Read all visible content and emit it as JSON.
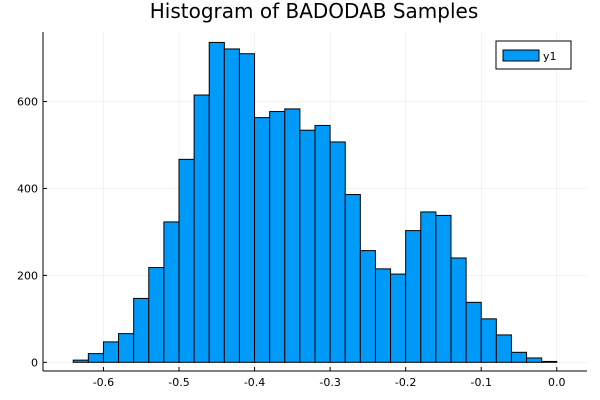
{
  "chart_data": {
    "type": "bar",
    "title": "Histogram of BADODAB Samples",
    "xlabel": "",
    "ylabel": "",
    "bin_width": 0.02,
    "bin_edges_start": -0.64,
    "values": [
      5,
      20,
      47,
      66,
      147,
      218,
      323,
      467,
      615,
      736,
      721,
      710,
      563,
      577,
      583,
      534,
      545,
      507,
      386,
      257,
      215,
      203,
      303,
      346,
      338,
      240,
      138,
      100,
      63,
      23,
      10,
      2
    ],
    "xlim": [
      -0.68,
      0.04
    ],
    "ylim": [
      -20,
      760
    ],
    "xticks": [
      -0.6,
      -0.5,
      -0.4,
      -0.3,
      -0.2,
      -0.1,
      0.0
    ],
    "xtick_labels": [
      "-0.6",
      "-0.5",
      "-0.4",
      "-0.3",
      "-0.2",
      "-0.1",
      "0.0"
    ],
    "yticks": [
      0,
      200,
      400,
      600
    ],
    "ytick_labels": [
      "0",
      "200",
      "400",
      "600"
    ],
    "grid": true,
    "legend": {
      "position": "top-right",
      "entries": [
        {
          "name": "y1",
          "color": "#009af9"
        }
      ]
    },
    "bar_color": "#009af9"
  }
}
